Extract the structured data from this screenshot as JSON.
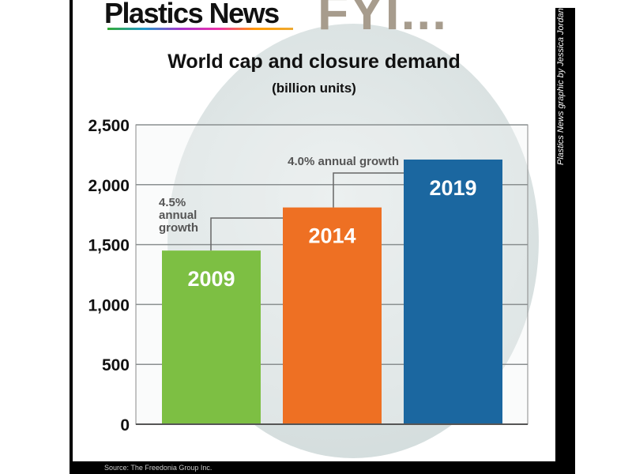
{
  "header": {
    "logo": "Plastics News",
    "fyi": "FYI..."
  },
  "credit": "Plastics News graphic by Jessica Jordan",
  "source": "Source:  The Freedonia Group Inc.",
  "chart_data": {
    "type": "bar",
    "title": "World cap and closure demand",
    "subtitle": "(billion units)",
    "categories": [
      "2009",
      "2014",
      "2019"
    ],
    "values": [
      1450,
      1810,
      2210
    ],
    "colors": [
      "#7dbf43",
      "#ee7023",
      "#1b67a0"
    ],
    "ylim": [
      0,
      2500
    ],
    "yticks": [
      0,
      500,
      1000,
      1500,
      2000,
      2500
    ],
    "ytick_labels": [
      "0",
      "500",
      "1,000",
      "1,500",
      "2,000",
      "2,500"
    ],
    "grid": true,
    "annotations": [
      {
        "from": "2009",
        "to": "2014",
        "lines": [
          "4.5%",
          "annual",
          "growth"
        ]
      },
      {
        "from": "2014",
        "to": "2019",
        "lines": [
          "4.0% annual growth"
        ]
      }
    ]
  }
}
